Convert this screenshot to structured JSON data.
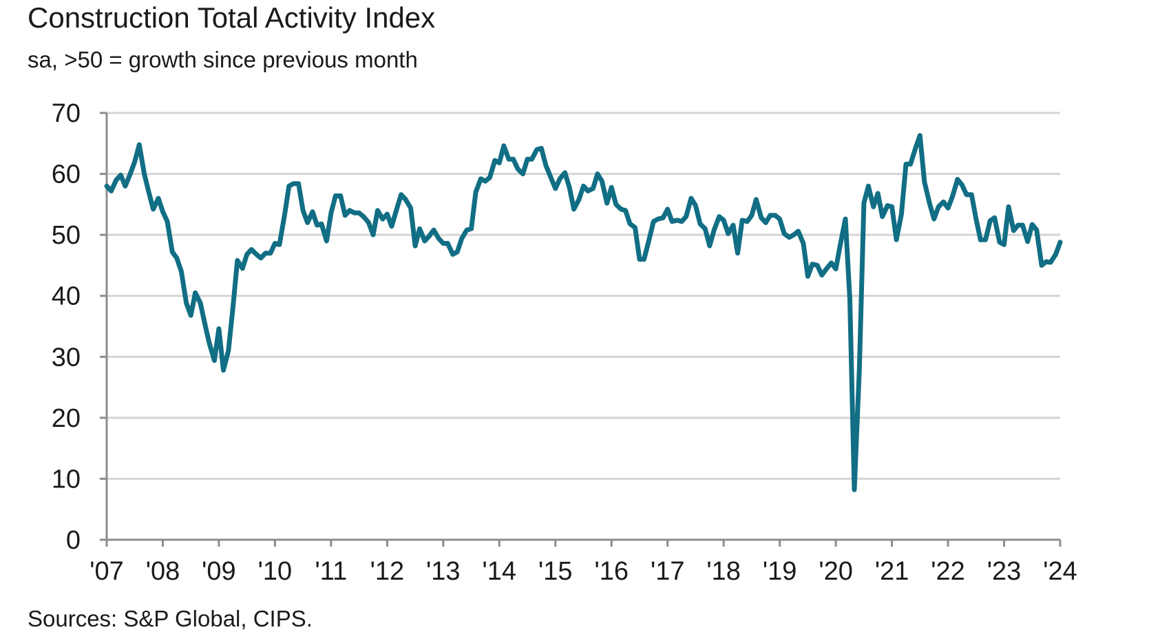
{
  "chart_data": {
    "type": "line",
    "title": "Construction Total Activity Index",
    "subtitle": "sa, >50 = growth since previous month",
    "source": "Sources: S&P Global, CIPS.",
    "xlabel": "",
    "ylabel": "",
    "ylim": [
      0,
      70
    ],
    "y_ticks": [
      0,
      10,
      20,
      30,
      40,
      50,
      60,
      70
    ],
    "x_range": [
      2007.0,
      2024.0
    ],
    "x_ticks": [
      {
        "x": 2007,
        "label": "'07"
      },
      {
        "x": 2008,
        "label": "'08"
      },
      {
        "x": 2009,
        "label": "'09"
      },
      {
        "x": 2010,
        "label": "'10"
      },
      {
        "x": 2011,
        "label": "'11"
      },
      {
        "x": 2012,
        "label": "'12"
      },
      {
        "x": 2013,
        "label": "'13"
      },
      {
        "x": 2014,
        "label": "'14"
      },
      {
        "x": 2015,
        "label": "'15"
      },
      {
        "x": 2016,
        "label": "'16"
      },
      {
        "x": 2017,
        "label": "'17"
      },
      {
        "x": 2018,
        "label": "'18"
      },
      {
        "x": 2019,
        "label": "'19"
      },
      {
        "x": 2020,
        "label": "'20"
      },
      {
        "x": 2021,
        "label": "'21"
      },
      {
        "x": 2022,
        "label": "'22"
      },
      {
        "x": 2023,
        "label": "'23"
      },
      {
        "x": 2024,
        "label": "'24"
      }
    ],
    "grid": "horizontal",
    "colors": {
      "series": "#116e84",
      "grid": "#d4d4d4",
      "axis": "#8c8c8c"
    },
    "series": [
      {
        "points": [
          [
            2007.0,
            58.0
          ],
          [
            2007.08,
            57.2
          ],
          [
            2007.17,
            59.0
          ],
          [
            2007.25,
            59.8
          ],
          [
            2007.33,
            58.0
          ],
          [
            2007.42,
            60.0
          ],
          [
            2007.5,
            62.0
          ],
          [
            2007.58,
            64.8
          ],
          [
            2007.67,
            60.0
          ],
          [
            2007.75,
            57.0
          ],
          [
            2007.83,
            54.2
          ],
          [
            2007.92,
            56.0
          ],
          [
            2008.0,
            53.8
          ],
          [
            2008.08,
            52.2
          ],
          [
            2008.17,
            47.2
          ],
          [
            2008.25,
            46.2
          ],
          [
            2008.33,
            44.0
          ],
          [
            2008.42,
            38.8
          ],
          [
            2008.5,
            36.8
          ],
          [
            2008.58,
            40.5
          ],
          [
            2008.67,
            38.8
          ],
          [
            2008.75,
            35.4
          ],
          [
            2008.83,
            32.2
          ],
          [
            2008.92,
            29.4
          ],
          [
            2009.0,
            34.6
          ],
          [
            2009.08,
            27.8
          ],
          [
            2009.17,
            31.0
          ],
          [
            2009.25,
            38.0
          ],
          [
            2009.33,
            45.8
          ],
          [
            2009.42,
            44.5
          ],
          [
            2009.5,
            46.8
          ],
          [
            2009.58,
            47.6
          ],
          [
            2009.67,
            46.8
          ],
          [
            2009.75,
            46.2
          ],
          [
            2009.83,
            47.0
          ],
          [
            2009.92,
            47.0
          ],
          [
            2010.0,
            48.6
          ],
          [
            2010.08,
            48.4
          ],
          [
            2010.17,
            53.2
          ],
          [
            2010.25,
            58.0
          ],
          [
            2010.33,
            58.4
          ],
          [
            2010.42,
            58.4
          ],
          [
            2010.5,
            54.0
          ],
          [
            2010.58,
            52.0
          ],
          [
            2010.67,
            53.8
          ],
          [
            2010.75,
            51.6
          ],
          [
            2010.83,
            51.8
          ],
          [
            2010.92,
            49.0
          ],
          [
            2011.0,
            53.6
          ],
          [
            2011.08,
            56.4
          ],
          [
            2011.17,
            56.4
          ],
          [
            2011.25,
            53.2
          ],
          [
            2011.33,
            54.0
          ],
          [
            2011.42,
            53.6
          ],
          [
            2011.5,
            53.6
          ],
          [
            2011.58,
            53.0
          ],
          [
            2011.67,
            52.0
          ],
          [
            2011.75,
            50.0
          ],
          [
            2011.83,
            54.0
          ],
          [
            2011.92,
            52.6
          ],
          [
            2012.0,
            53.4
          ],
          [
            2012.08,
            51.4
          ],
          [
            2012.17,
            54.2
          ],
          [
            2012.25,
            56.6
          ],
          [
            2012.33,
            55.8
          ],
          [
            2012.42,
            54.4
          ],
          [
            2012.5,
            48.2
          ],
          [
            2012.58,
            51.0
          ],
          [
            2012.67,
            49.0
          ],
          [
            2012.75,
            49.8
          ],
          [
            2012.83,
            50.8
          ],
          [
            2012.92,
            49.4
          ],
          [
            2013.0,
            48.6
          ],
          [
            2013.08,
            48.6
          ],
          [
            2013.17,
            46.8
          ],
          [
            2013.25,
            47.2
          ],
          [
            2013.33,
            49.4
          ],
          [
            2013.42,
            50.8
          ],
          [
            2013.5,
            51.0
          ],
          [
            2013.58,
            57.0
          ],
          [
            2013.67,
            59.2
          ],
          [
            2013.75,
            58.8
          ],
          [
            2013.83,
            59.4
          ],
          [
            2013.92,
            62.2
          ],
          [
            2014.0,
            61.8
          ],
          [
            2014.08,
            64.6
          ],
          [
            2014.17,
            62.4
          ],
          [
            2014.25,
            62.4
          ],
          [
            2014.33,
            60.8
          ],
          [
            2014.42,
            60.0
          ],
          [
            2014.5,
            62.4
          ],
          [
            2014.58,
            62.4
          ],
          [
            2014.67,
            64.0
          ],
          [
            2014.75,
            64.2
          ],
          [
            2014.83,
            61.4
          ],
          [
            2014.92,
            59.4
          ],
          [
            2015.0,
            57.6
          ],
          [
            2015.08,
            59.2
          ],
          [
            2015.17,
            60.2
          ],
          [
            2015.25,
            57.8
          ],
          [
            2015.33,
            54.2
          ],
          [
            2015.42,
            55.8
          ],
          [
            2015.5,
            58.0
          ],
          [
            2015.58,
            57.2
          ],
          [
            2015.67,
            57.6
          ],
          [
            2015.75,
            60.0
          ],
          [
            2015.83,
            58.8
          ],
          [
            2015.92,
            55.2
          ],
          [
            2016.0,
            57.8
          ],
          [
            2016.08,
            55.0
          ],
          [
            2016.17,
            54.2
          ],
          [
            2016.25,
            54.0
          ],
          [
            2016.33,
            51.8
          ],
          [
            2016.42,
            51.2
          ],
          [
            2016.5,
            46.0
          ],
          [
            2016.58,
            46.0
          ],
          [
            2016.67,
            49.2
          ],
          [
            2016.75,
            52.2
          ],
          [
            2016.83,
            52.6
          ],
          [
            2016.92,
            52.8
          ],
          [
            2017.0,
            54.2
          ],
          [
            2017.08,
            52.2
          ],
          [
            2017.17,
            52.4
          ],
          [
            2017.25,
            52.2
          ],
          [
            2017.33,
            53.0
          ],
          [
            2017.42,
            56.0
          ],
          [
            2017.5,
            54.8
          ],
          [
            2017.58,
            51.8
          ],
          [
            2017.67,
            51.0
          ],
          [
            2017.75,
            48.2
          ],
          [
            2017.83,
            50.8
          ],
          [
            2017.92,
            53.0
          ],
          [
            2018.0,
            52.4
          ],
          [
            2018.08,
            50.2
          ],
          [
            2018.17,
            51.6
          ],
          [
            2018.25,
            47.0
          ],
          [
            2018.33,
            52.4
          ],
          [
            2018.42,
            52.2
          ],
          [
            2018.5,
            53.2
          ],
          [
            2018.58,
            55.8
          ],
          [
            2018.67,
            52.8
          ],
          [
            2018.75,
            52.0
          ],
          [
            2018.83,
            53.2
          ],
          [
            2018.92,
            53.2
          ],
          [
            2019.0,
            52.6
          ],
          [
            2019.08,
            50.2
          ],
          [
            2019.17,
            49.6
          ],
          [
            2019.25,
            50.0
          ],
          [
            2019.33,
            50.6
          ],
          [
            2019.42,
            48.6
          ],
          [
            2019.5,
            43.2
          ],
          [
            2019.58,
            45.2
          ],
          [
            2019.67,
            45.0
          ],
          [
            2019.75,
            43.4
          ],
          [
            2019.83,
            44.4
          ],
          [
            2019.92,
            45.4
          ],
          [
            2020.0,
            44.4
          ],
          [
            2020.08,
            48.4
          ],
          [
            2020.17,
            52.6
          ],
          [
            2020.25,
            39.4
          ],
          [
            2020.33,
            8.2
          ],
          [
            2020.42,
            28.0
          ],
          [
            2020.5,
            55.2
          ],
          [
            2020.58,
            58.0
          ],
          [
            2020.67,
            54.6
          ],
          [
            2020.75,
            56.8
          ],
          [
            2020.83,
            53.0
          ],
          [
            2020.92,
            54.8
          ],
          [
            2021.0,
            54.6
          ],
          [
            2021.08,
            49.2
          ],
          [
            2021.17,
            53.4
          ],
          [
            2021.25,
            61.6
          ],
          [
            2021.33,
            61.6
          ],
          [
            2021.42,
            64.2
          ],
          [
            2021.5,
            66.3
          ],
          [
            2021.58,
            58.7
          ],
          [
            2021.67,
            55.2
          ],
          [
            2021.75,
            52.6
          ],
          [
            2021.83,
            54.6
          ],
          [
            2021.92,
            55.4
          ],
          [
            2022.0,
            54.4
          ],
          [
            2022.08,
            56.3
          ],
          [
            2022.17,
            59.1
          ],
          [
            2022.25,
            58.2
          ],
          [
            2022.33,
            56.6
          ],
          [
            2022.42,
            56.6
          ],
          [
            2022.5,
            52.6
          ],
          [
            2022.58,
            49.2
          ],
          [
            2022.67,
            49.2
          ],
          [
            2022.75,
            52.3
          ],
          [
            2022.83,
            52.8
          ],
          [
            2022.92,
            48.8
          ],
          [
            2023.0,
            48.4
          ],
          [
            2023.08,
            54.6
          ],
          [
            2023.17,
            50.7
          ],
          [
            2023.25,
            51.6
          ],
          [
            2023.33,
            51.6
          ],
          [
            2023.42,
            48.9
          ],
          [
            2023.5,
            51.7
          ],
          [
            2023.58,
            50.8
          ],
          [
            2023.67,
            45.0
          ],
          [
            2023.75,
            45.6
          ],
          [
            2023.83,
            45.5
          ],
          [
            2023.92,
            46.8
          ],
          [
            2024.0,
            48.8
          ]
        ]
      }
    ]
  }
}
